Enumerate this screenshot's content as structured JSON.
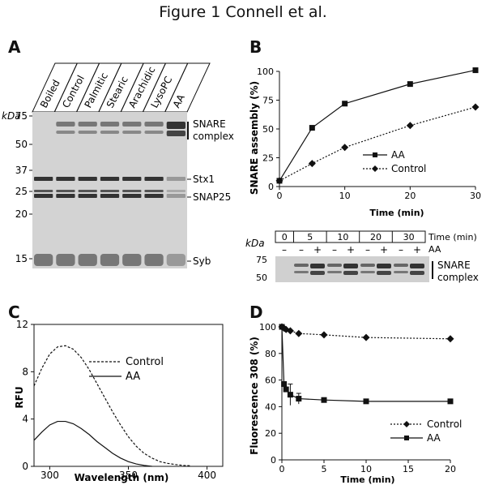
{
  "figure_title": "Figure 1   Connell et al.",
  "panel_a": {
    "label": "A",
    "kda_label": "kDa",
    "lanes": [
      "Boiled",
      "Control",
      "Palmitic",
      "Stearic",
      "Arachidic",
      "LysoPC",
      "AA"
    ],
    "mw_markers": [
      "75",
      "50",
      "37",
      "25",
      "20",
      "15"
    ],
    "band_labels": {
      "snare": "SNARE",
      "complex": "complex",
      "stx1": "Stx1",
      "snap25": "SNAP25",
      "syb": "Syb"
    }
  },
  "panel_b": {
    "label": "B",
    "chart_data": {
      "type": "line",
      "xlabel": "Time (min)",
      "ylabel": "SNARE assembly (%)",
      "xlim": [
        0,
        30
      ],
      "ylim": [
        0,
        100
      ],
      "xticks": [
        "0",
        "10",
        "20",
        "30"
      ],
      "yticks": [
        "0",
        "25",
        "50",
        "75",
        "100"
      ],
      "legend_position": "center-right",
      "series": [
        {
          "name": "AA",
          "x": [
            0,
            5,
            10,
            20,
            30
          ],
          "y": [
            5,
            51,
            72,
            89,
            101
          ],
          "marker": "square",
          "style": "solid"
        },
        {
          "name": "Control",
          "x": [
            0,
            5,
            10,
            20,
            30
          ],
          "y": [
            5,
            20,
            34,
            53,
            69
          ],
          "marker": "diamond",
          "style": "dotted"
        }
      ]
    },
    "gel": {
      "kda_label": "kDa",
      "time_label": "Time (min)",
      "aa_label": "AA",
      "time_points": [
        "0",
        "5",
        "10",
        "20",
        "30"
      ],
      "aa_signs": [
        "–",
        "–",
        "+",
        "–",
        "+",
        "–",
        "+",
        "–",
        "+"
      ],
      "mw_markers": [
        "75",
        "50"
      ],
      "snare": "SNARE",
      "complex": "complex"
    }
  },
  "panel_c": {
    "label": "C",
    "chart_data": {
      "type": "line",
      "xlabel": "Wavelength (nm)",
      "ylabel": "RFU",
      "xlim": [
        290,
        410
      ],
      "ylim": [
        0,
        12
      ],
      "xticks": [
        "300",
        "350",
        "400"
      ],
      "yticks": [
        "0",
        "4",
        "8",
        "12"
      ],
      "legend_position": "top-right",
      "series": [
        {
          "name": "Control",
          "style": "dashed",
          "x": [
            290,
            295,
            300,
            305,
            310,
            315,
            320,
            325,
            330,
            335,
            340,
            345,
            350,
            355,
            360,
            365,
            370,
            375,
            380,
            385,
            390
          ],
          "y": [
            6.8,
            8.3,
            9.5,
            10.1,
            10.2,
            9.9,
            9.2,
            8.2,
            7.0,
            5.8,
            4.6,
            3.5,
            2.5,
            1.7,
            1.1,
            0.7,
            0.4,
            0.25,
            0.15,
            0.08,
            0.05
          ]
        },
        {
          "name": "AA",
          "style": "solid",
          "x": [
            290,
            295,
            300,
            305,
            310,
            315,
            320,
            325,
            330,
            335,
            340,
            345,
            350,
            355,
            360,
            365
          ],
          "y": [
            2.2,
            2.9,
            3.5,
            3.8,
            3.8,
            3.6,
            3.2,
            2.7,
            2.1,
            1.6,
            1.1,
            0.7,
            0.4,
            0.2,
            0.08,
            0.0
          ]
        }
      ]
    }
  },
  "panel_d": {
    "label": "D",
    "chart_data": {
      "type": "line",
      "xlabel": "Time (min)",
      "ylabel": "Fluorescence 308 (%)",
      "xlim": [
        0,
        20
      ],
      "ylim": [
        0,
        100
      ],
      "xticks": [
        "0",
        "5",
        "10",
        "15",
        "20"
      ],
      "yticks": [
        "0",
        "20",
        "40",
        "60",
        "80",
        "100"
      ],
      "legend_position": "bottom-right",
      "series": [
        {
          "name": "Control",
          "marker": "diamond",
          "style": "dotted",
          "x": [
            0,
            0.25,
            0.5,
            1,
            2,
            5,
            10,
            20
          ],
          "y": [
            100,
            99,
            98,
            97,
            95,
            94,
            92,
            91
          ]
        },
        {
          "name": "AA",
          "marker": "square",
          "style": "solid",
          "x": [
            0,
            0.25,
            0.5,
            1,
            2,
            5,
            10,
            20
          ],
          "y": [
            100,
            57,
            53,
            49,
            46,
            45,
            44,
            44
          ],
          "err": [
            0,
            0,
            0,
            8,
            4,
            0,
            0,
            0
          ]
        }
      ]
    }
  }
}
